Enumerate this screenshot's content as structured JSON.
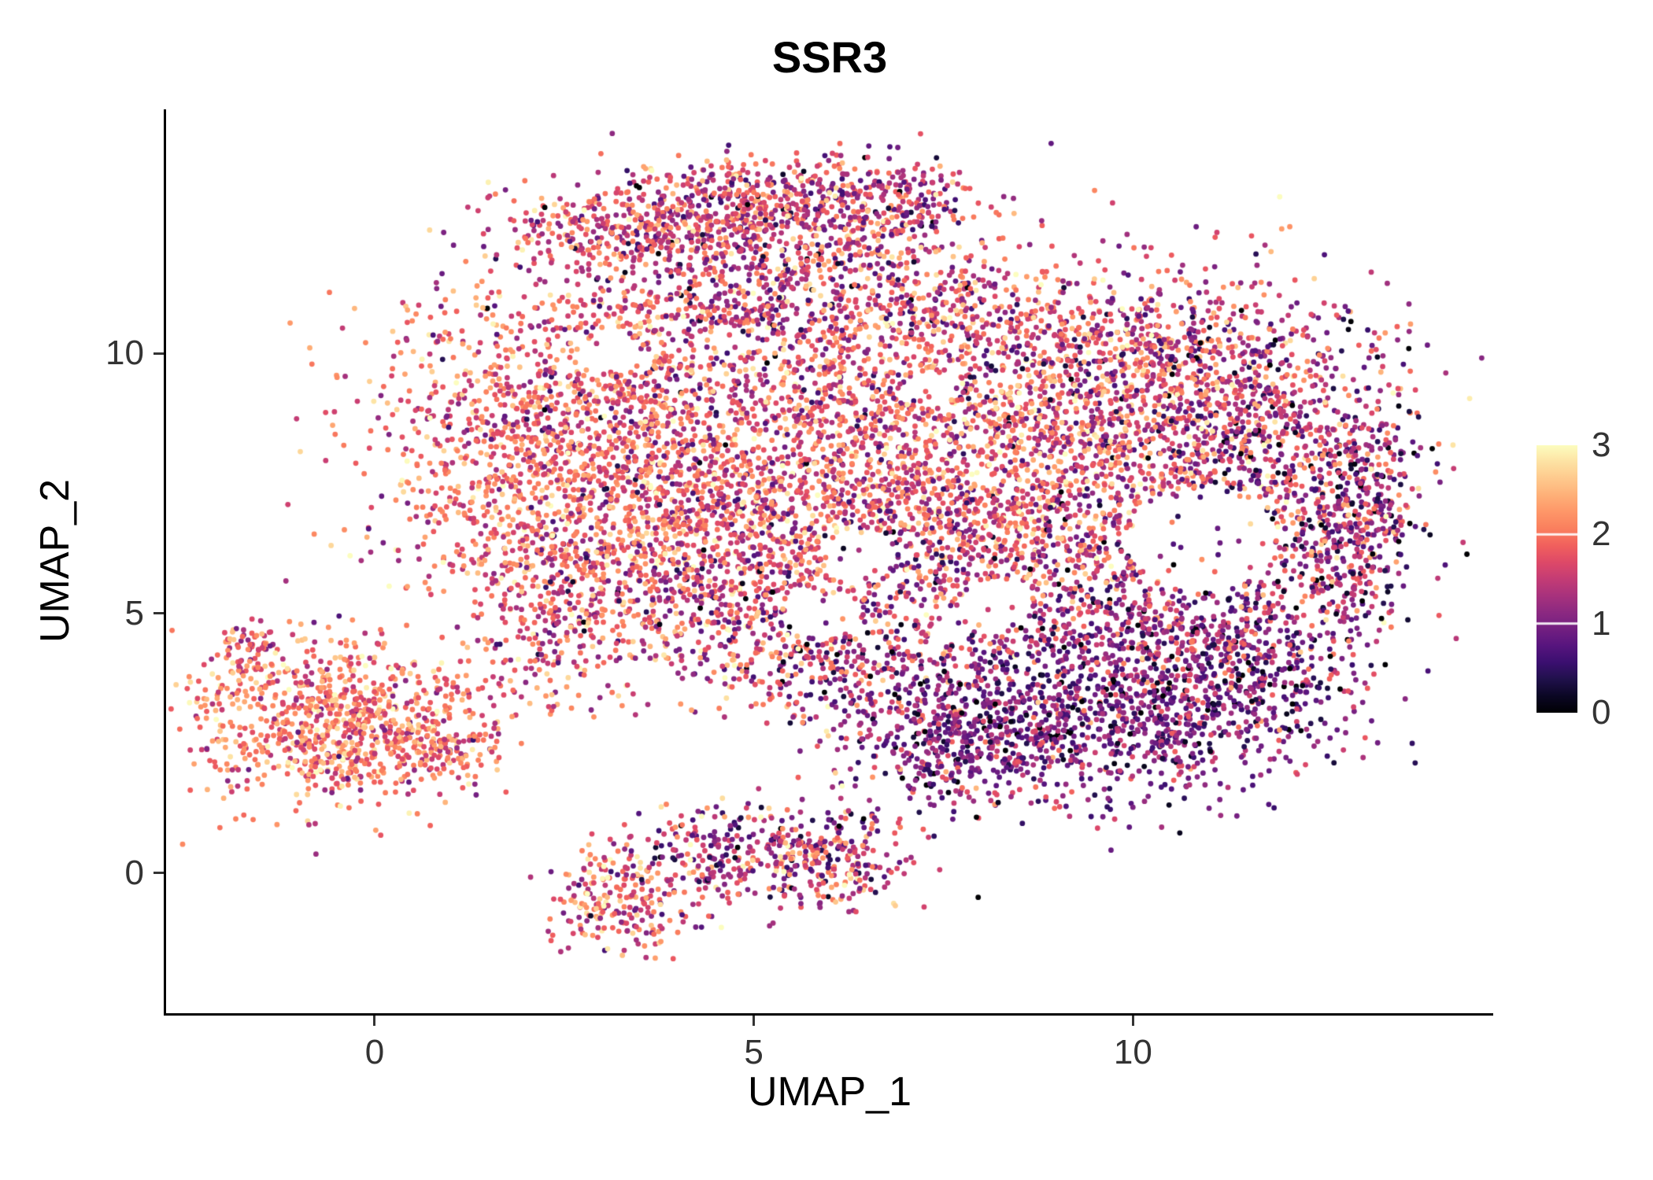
{
  "figure": {
    "title": "SSR3",
    "x_axis_label": "UMAP_1",
    "y_axis_label": "UMAP_2"
  },
  "chart_data": {
    "type": "scatter",
    "title": "SSR3",
    "xlabel": "UMAP_1",
    "ylabel": "UMAP_2",
    "xlim": [
      -2.75,
      14.75
    ],
    "ylim": [
      -2.7,
      14.7
    ],
    "xticks": [
      0,
      5,
      10
    ],
    "yticks": [
      0,
      5,
      10
    ],
    "grid": false,
    "point_radius_px": 3.4,
    "seed": 1337,
    "legend": {
      "type": "colorbar",
      "position": "right",
      "min": 0,
      "max": 3,
      "ticks": [
        3,
        2,
        1,
        0
      ],
      "colormap": "magma",
      "colormap_stops": [
        "#000004",
        "#0B0724",
        "#20114B",
        "#3B0F70",
        "#57157E",
        "#721F81",
        "#8C2981",
        "#A8327D",
        "#C43C75",
        "#DE4968",
        "#F1605D",
        "#FA7F5E",
        "#FE9668",
        "#FEB078",
        "#FEC98D",
        "#FDE2A3",
        "#FCFDBF"
      ]
    },
    "clusters": [
      {
        "n": 1300,
        "cx": 2.4,
        "cy": 8.4,
        "sx": 1.35,
        "sy": 1.5,
        "em": 1.9,
        "es": 0.55
      },
      {
        "n": 1500,
        "cx": 5.4,
        "cy": 8.3,
        "sx": 1.7,
        "sy": 1.8,
        "em": 1.7,
        "es": 0.6
      },
      {
        "n": 1500,
        "cx": 8.4,
        "cy": 8.4,
        "sx": 1.6,
        "sy": 1.6,
        "em": 1.8,
        "es": 0.6
      },
      {
        "n": 800,
        "cx": 10.9,
        "cy": 9.2,
        "sx": 1.3,
        "sy": 1.0,
        "em": 1.5,
        "es": 0.65
      },
      {
        "n": 500,
        "cx": 12.0,
        "cy": 7.6,
        "sx": 0.9,
        "sy": 1.2,
        "em": 1.3,
        "es": 0.7
      },
      {
        "n": 260,
        "cx": 13.0,
        "cy": 7.0,
        "sx": 0.35,
        "sy": 0.9,
        "em": 1.2,
        "es": 0.7
      },
      {
        "n": 600,
        "cx": 3.6,
        "cy": 6.1,
        "sx": 1.3,
        "sy": 0.9,
        "em": 1.8,
        "es": 0.6
      },
      {
        "n": 500,
        "cx": 7.0,
        "cy": 6.3,
        "sx": 1.5,
        "sy": 0.9,
        "em": 1.6,
        "es": 0.65
      },
      {
        "n": 450,
        "cx": 9.8,
        "cy": 6.0,
        "sx": 1.2,
        "sy": 0.9,
        "em": 1.3,
        "es": 0.65
      },
      {
        "n": 150,
        "cx": 7.8,
        "cy": 10.9,
        "sx": 0.8,
        "sy": 0.55,
        "em": 1.6,
        "es": 0.6
      },
      {
        "n": 150,
        "cx": 9.8,
        "cy": 10.4,
        "sx": 0.9,
        "sy": 0.5,
        "em": 1.5,
        "es": 0.6
      },
      {
        "n": 380,
        "cx": 3.4,
        "cy": 12.45,
        "sx": 0.9,
        "sy": 0.42,
        "em": 1.6,
        "es": 0.6
      },
      {
        "n": 360,
        "cx": 5.3,
        "cy": 13.0,
        "sx": 0.95,
        "sy": 0.38,
        "em": 1.6,
        "es": 0.6
      },
      {
        "n": 300,
        "cx": 5.2,
        "cy": 11.9,
        "sx": 1.2,
        "sy": 0.65,
        "em": 1.5,
        "es": 0.6
      },
      {
        "n": 220,
        "cx": 6.8,
        "cy": 12.6,
        "sx": 0.55,
        "sy": 0.6,
        "em": 1.4,
        "es": 0.6
      },
      {
        "n": 260,
        "cx": 4.9,
        "cy": 10.9,
        "sx": 1.5,
        "sy": 0.5,
        "em": 1.5,
        "es": 0.6
      },
      {
        "n": 850,
        "cx": -0.5,
        "cy": 2.9,
        "sx": 0.95,
        "sy": 0.8,
        "em": 2.0,
        "es": 0.5
      },
      {
        "n": 130,
        "cx": 0.9,
        "cy": 2.5,
        "sx": 0.45,
        "sy": 0.35,
        "em": 1.9,
        "es": 0.5
      },
      {
        "n": 70,
        "cx": -1.55,
        "cy": 4.35,
        "sx": 0.22,
        "sy": 0.3,
        "em": 1.8,
        "es": 0.5
      },
      {
        "n": 200,
        "cx": 3.2,
        "cy": -0.6,
        "sx": 0.45,
        "sy": 0.5,
        "em": 1.8,
        "es": 0.6
      },
      {
        "n": 330,
        "cx": 4.8,
        "cy": 0.35,
        "sx": 0.85,
        "sy": 0.5,
        "em": 1.4,
        "es": 0.7
      },
      {
        "n": 170,
        "cx": 6.1,
        "cy": 0.3,
        "sx": 0.5,
        "sy": 0.55,
        "em": 1.5,
        "es": 0.7
      },
      {
        "n": 850,
        "cx": 9.2,
        "cy": 2.9,
        "sx": 1.25,
        "sy": 0.85,
        "em": 0.95,
        "es": 0.5
      },
      {
        "n": 500,
        "cx": 11.2,
        "cy": 3.6,
        "sx": 0.95,
        "sy": 0.8,
        "em": 1.0,
        "es": 0.55
      },
      {
        "n": 330,
        "cx": 7.6,
        "cy": 2.6,
        "sx": 0.7,
        "sy": 0.7,
        "em": 1.0,
        "es": 0.55
      },
      {
        "n": 300,
        "cx": 10.4,
        "cy": 4.6,
        "sx": 1.3,
        "sy": 0.5,
        "em": 1.1,
        "es": 0.55
      },
      {
        "n": 280,
        "cx": 4.9,
        "cy": 4.5,
        "sx": 1.1,
        "sy": 0.7,
        "em": 1.5,
        "es": 0.65
      },
      {
        "n": 160,
        "cx": 2.4,
        "cy": 4.6,
        "sx": 0.55,
        "sy": 0.9,
        "em": 1.7,
        "es": 0.6
      },
      {
        "n": 180,
        "cx": 6.3,
        "cy": 3.9,
        "sx": 0.9,
        "sy": 0.5,
        "em": 1.3,
        "es": 0.65
      },
      {
        "n": 120,
        "cx": 12.6,
        "cy": 5.6,
        "sx": 0.6,
        "sy": 0.6,
        "em": 1.1,
        "es": 0.6
      }
    ],
    "holes": [
      {
        "cx": 10.9,
        "cy": 6.4,
        "r": 1.0
      },
      {
        "cx": 6.4,
        "cy": 6.1,
        "r": 0.5
      },
      {
        "cx": 5.9,
        "cy": 5.0,
        "r": 0.5
      },
      {
        "cx": 8.2,
        "cy": 5.2,
        "r": 0.45
      },
      {
        "cx": 3.1,
        "cy": 10.0,
        "r": 0.4
      },
      {
        "cx": 7.3,
        "cy": 9.3,
        "r": 0.35
      }
    ]
  },
  "colors": {
    "background": "#FFFFFF",
    "axis_line": "#000000",
    "tick_mark": "#333333",
    "tick_label": "#333333",
    "axis_title": "#000000",
    "plot_title": "#000000",
    "colorbar_tick": "#FFFFFF"
  }
}
